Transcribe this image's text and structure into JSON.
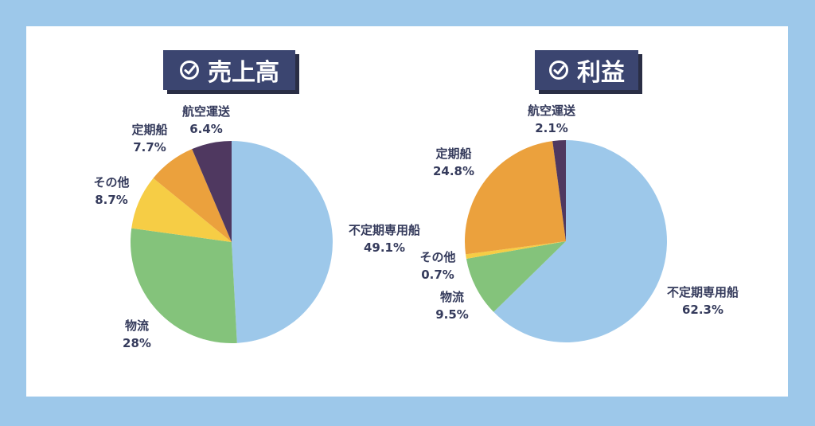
{
  "chart_data": [
    {
      "type": "pie",
      "title": "売上高",
      "slices": [
        {
          "label": "不定期専用船",
          "value": 49.1,
          "value_text": "49.1%",
          "color": "#9dc8ea"
        },
        {
          "label": "物流",
          "value": 28,
          "value_text": "28%",
          "color": "#84c37b"
        },
        {
          "label": "その他",
          "value": 8.7,
          "value_text": "8.7%",
          "color": "#f6cd45"
        },
        {
          "label": "定期船",
          "value": 7.7,
          "value_text": "7.7%",
          "color": "#eba13d"
        },
        {
          "label": "航空運送",
          "value": 6.4,
          "value_text": "6.4%",
          "color": "#4f3860"
        }
      ]
    },
    {
      "type": "pie",
      "title": "利益",
      "slices": [
        {
          "label": "不定期専用船",
          "value": 62.3,
          "value_text": "62.3%",
          "color": "#9dc8ea"
        },
        {
          "label": "物流",
          "value": 9.5,
          "value_text": "9.5%",
          "color": "#84c37b"
        },
        {
          "label": "その他",
          "value": 0.7,
          "value_text": "0.7%",
          "color": "#f6cd45"
        },
        {
          "label": "定期船",
          "value": 24.8,
          "value_text": "24.8%",
          "color": "#eba13d"
        },
        {
          "label": "航空運送",
          "value": 2.1,
          "value_text": "2.1%",
          "color": "#4f3860"
        }
      ]
    }
  ],
  "icons": {
    "title_check": "check-circle-icon"
  },
  "colors": {
    "background": "#9dc8ea",
    "badge": "#3b4570",
    "label_text": "#353b5c"
  }
}
